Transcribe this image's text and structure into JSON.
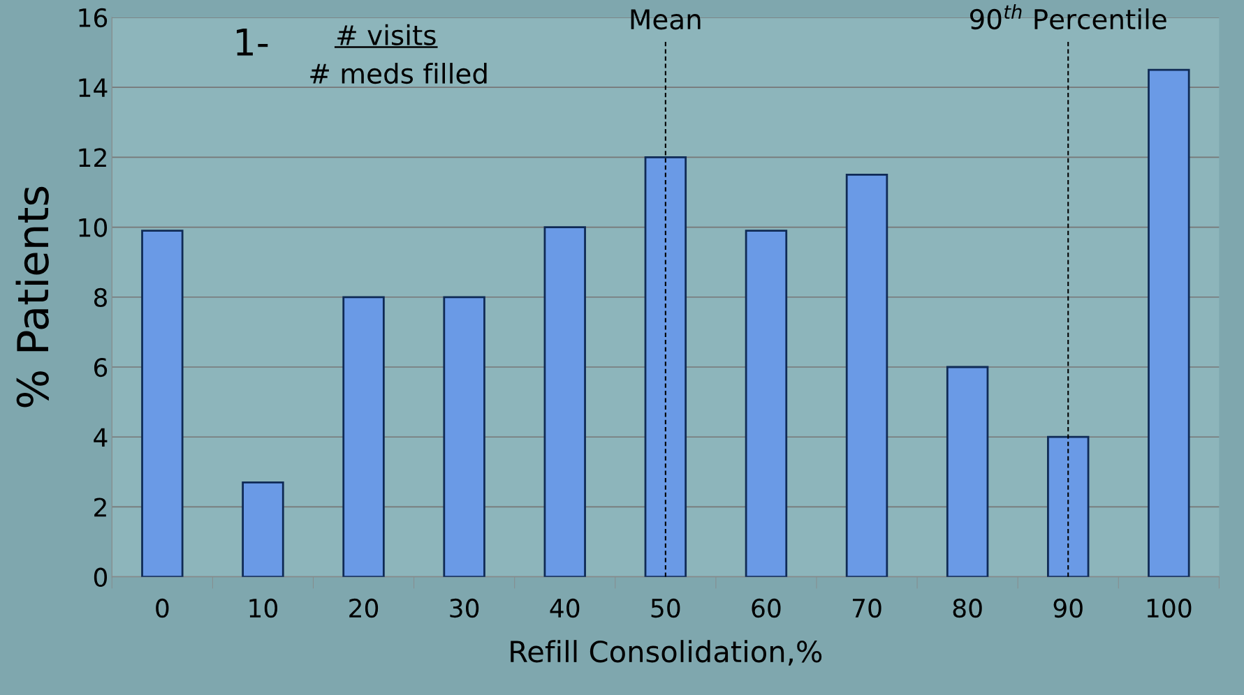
{
  "chart_data": {
    "type": "bar",
    "xlabel": "Refill Consolidation,%",
    "ylabel": "% Patients",
    "categories": [
      "0",
      "10",
      "20",
      "30",
      "40",
      "50",
      "60",
      "70",
      "80",
      "90",
      "100"
    ],
    "values": [
      9.9,
      2.7,
      8,
      8,
      10,
      12,
      9.9,
      11.5,
      6,
      4,
      14.5
    ],
    "color": "#6a9ae6",
    "ylim": [
      0,
      16
    ],
    "yticks": [
      0,
      2,
      4,
      6,
      8,
      10,
      12,
      14,
      16
    ],
    "grid": "y",
    "ref_lines": [
      {
        "axis": "x",
        "value": "50",
        "label": "Mean",
        "color": "#000000",
        "line_style": "dashed"
      },
      {
        "axis": "x",
        "value": "90",
        "label": "90$^{th}$ Percentile",
        "color": "#000000",
        "line_style": "dashed"
      }
    ],
    "annotations": [
      "1-",
      "# visits",
      "# meds filled"
    ]
  }
}
